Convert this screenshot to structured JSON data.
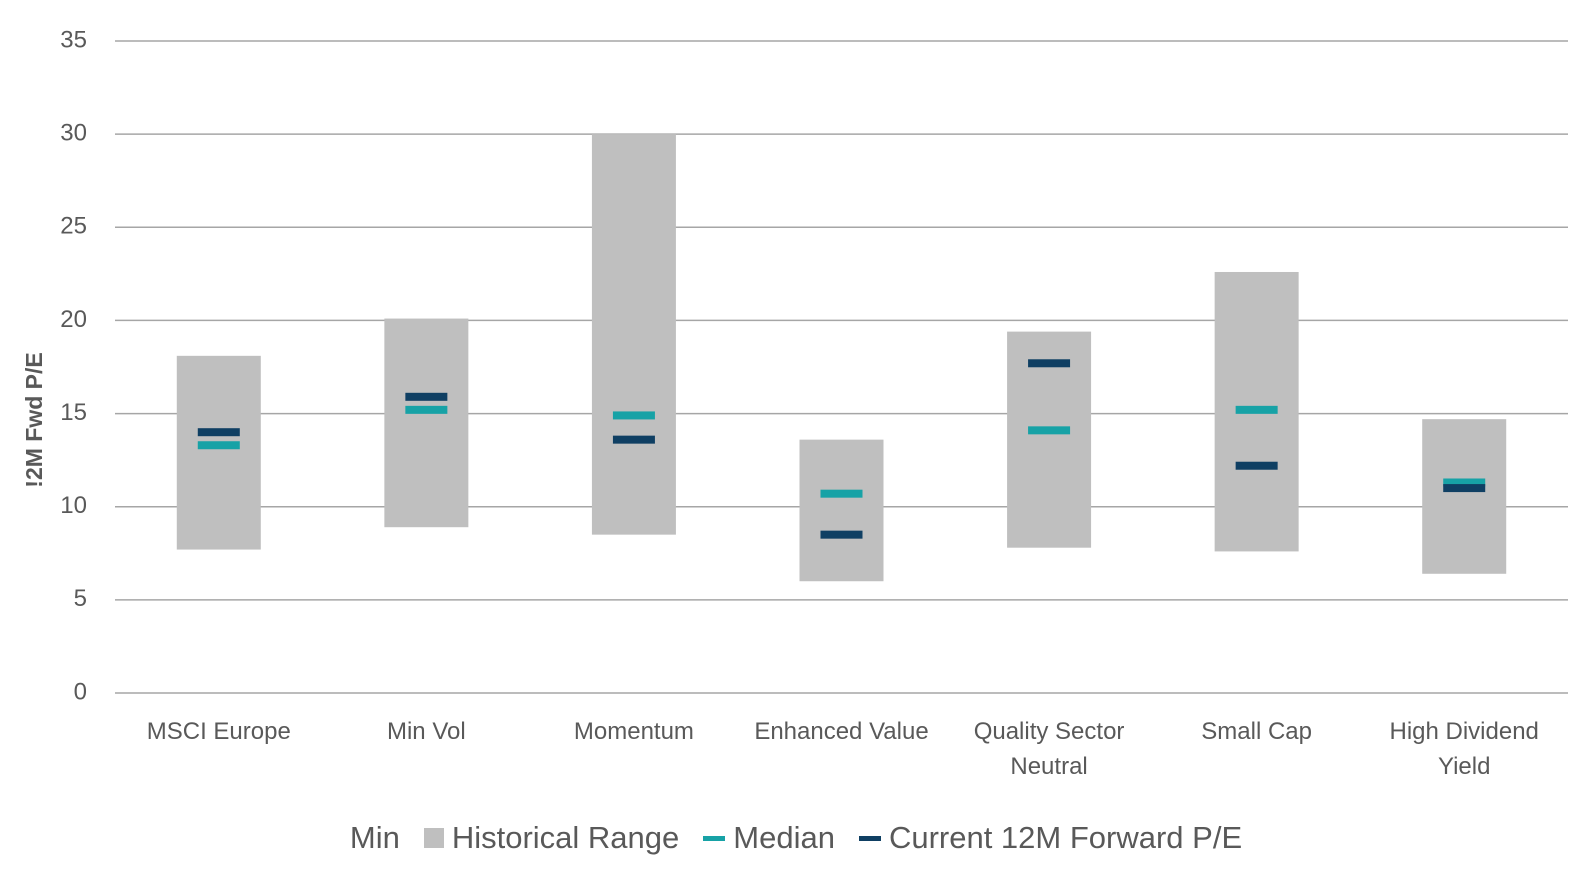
{
  "chart_data": {
    "type": "bar",
    "stacked": true,
    "y_label": "!2M Fwd P/E",
    "categories": [
      "MSCI Europe",
      "Min Vol",
      "Momentum",
      "Enhanced Value",
      "Quality Sector Neutral",
      "Small Cap",
      "High Dividend Yield"
    ],
    "series": [
      {
        "name": "Min",
        "type": "bar",
        "values": [
          7.7,
          8.9,
          8.5,
          6.0,
          7.8,
          7.6,
          6.4
        ]
      },
      {
        "name": "Historical Range",
        "type": "bar",
        "color": "#bfbfbf",
        "values": [
          10.4,
          11.2,
          21.5,
          7.6,
          11.6,
          15.0,
          8.3
        ]
      },
      {
        "name": "Median",
        "type": "marker",
        "color": "#17a2a6",
        "values": [
          13.3,
          15.2,
          14.9,
          10.7,
          14.1,
          15.2,
          11.3
        ]
      },
      {
        "name": "Current 12M Forward P/E",
        "type": "marker",
        "color": "#0f3f63",
        "values": [
          14.0,
          15.9,
          13.6,
          8.5,
          17.7,
          12.2,
          11.0
        ]
      }
    ],
    "ylim": [
      0,
      35
    ],
    "yticks": [
      0,
      5,
      10,
      15,
      20,
      25,
      30,
      35
    ],
    "grid": true,
    "legend": "bottom"
  }
}
